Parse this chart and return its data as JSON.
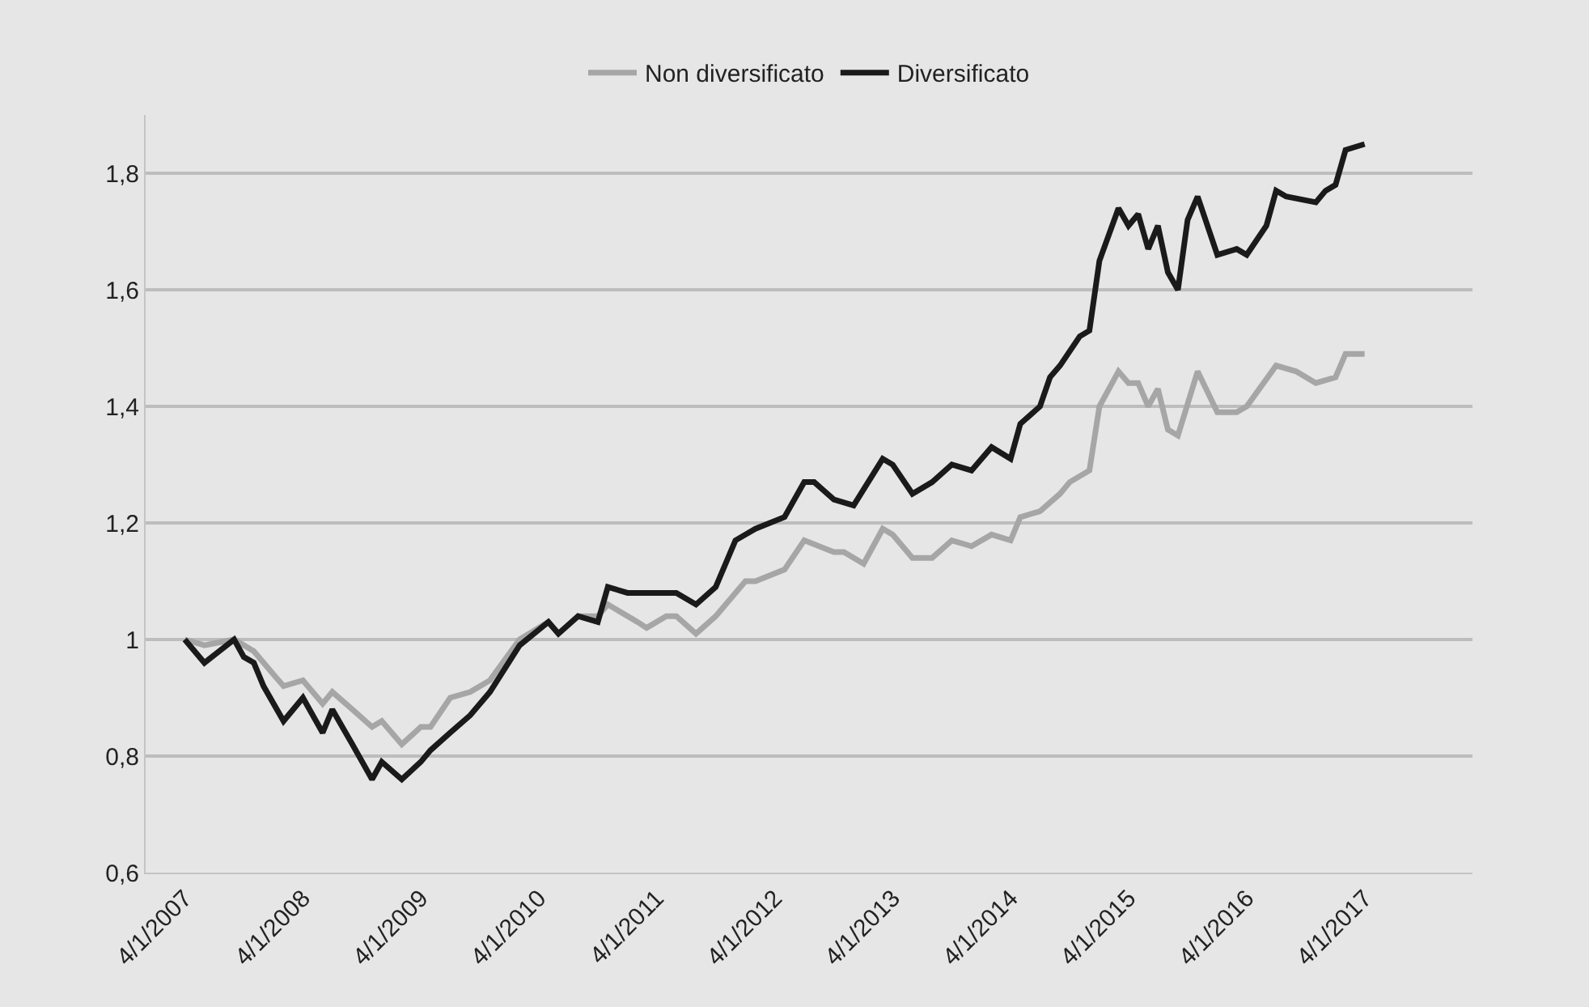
{
  "chart_data": {
    "type": "line",
    "series": [
      {
        "name": "Non diversificato",
        "color": "#a6a6a6",
        "x": [
          "2007-04",
          "2007-06",
          "2007-09",
          "2007-11",
          "2008-01",
          "2008-02",
          "2008-04",
          "2008-06",
          "2008-07",
          "2008-09",
          "2008-11",
          "2008-12",
          "2009-02",
          "2009-04",
          "2009-05",
          "2009-07",
          "2009-09",
          "2009-11",
          "2010-02",
          "2010-05",
          "2010-06",
          "2010-08",
          "2010-10",
          "2010-11",
          "2011-02",
          "2011-03",
          "2011-05",
          "2011-06",
          "2011-08",
          "2011-10",
          "2012-01",
          "2012-02",
          "2012-05",
          "2012-07",
          "2012-10",
          "2012-11",
          "2013-01",
          "2013-03",
          "2013-04",
          "2013-06",
          "2013-08",
          "2013-10",
          "2013-12",
          "2014-02",
          "2014-04",
          "2014-05",
          "2014-07",
          "2014-09",
          "2014-10",
          "2014-12",
          "2015-01",
          "2015-03",
          "2015-04",
          "2015-05",
          "2015-06",
          "2015-07",
          "2015-08",
          "2015-09",
          "2015-11",
          "2016-01",
          "2016-03",
          "2016-04",
          "2016-07",
          "2016-09",
          "2016-11",
          "2017-01",
          "2017-02",
          "2017-04"
        ],
        "values": [
          1.0,
          0.99,
          1.0,
          0.98,
          0.94,
          0.92,
          0.93,
          0.89,
          0.91,
          0.88,
          0.85,
          0.86,
          0.82,
          0.85,
          0.85,
          0.9,
          0.91,
          0.93,
          1.0,
          1.03,
          1.01,
          1.04,
          1.04,
          1.06,
          1.03,
          1.02,
          1.04,
          1.04,
          1.01,
          1.04,
          1.1,
          1.1,
          1.12,
          1.17,
          1.15,
          1.15,
          1.13,
          1.19,
          1.18,
          1.14,
          1.14,
          1.17,
          1.16,
          1.18,
          1.17,
          1.21,
          1.22,
          1.25,
          1.27,
          1.29,
          1.4,
          1.46,
          1.44,
          1.44,
          1.4,
          1.43,
          1.36,
          1.35,
          1.46,
          1.39,
          1.39,
          1.4,
          1.47,
          1.46,
          1.44,
          1.45,
          1.49,
          1.49
        ]
      },
      {
        "name": "Diversificato",
        "color": "#1a1a1a",
        "x": [
          "2007-04",
          "2007-06",
          "2007-09",
          "2007-10",
          "2007-11",
          "2007-12",
          "2008-02",
          "2008-04",
          "2008-06",
          "2008-07",
          "2008-09",
          "2008-11",
          "2008-12",
          "2009-02",
          "2009-04",
          "2009-05",
          "2009-07",
          "2009-09",
          "2009-11",
          "2010-02",
          "2010-05",
          "2010-06",
          "2010-08",
          "2010-10",
          "2010-11",
          "2011-01",
          "2011-03",
          "2011-05",
          "2011-06",
          "2011-08",
          "2011-10",
          "2011-12",
          "2012-02",
          "2012-05",
          "2012-07",
          "2012-08",
          "2012-10",
          "2012-12",
          "2013-03",
          "2013-04",
          "2013-06",
          "2013-08",
          "2013-10",
          "2013-12",
          "2014-02",
          "2014-04",
          "2014-05",
          "2014-07",
          "2014-08",
          "2014-09",
          "2014-11",
          "2014-12",
          "2015-01",
          "2015-03",
          "2015-04",
          "2015-05",
          "2015-06",
          "2015-07",
          "2015-08",
          "2015-09",
          "2015-10",
          "2015-11",
          "2016-01",
          "2016-03",
          "2016-04",
          "2016-06",
          "2016-07",
          "2016-08",
          "2016-11",
          "2016-12",
          "2017-01",
          "2017-02",
          "2017-04"
        ],
        "values": [
          1.0,
          0.96,
          1.0,
          0.97,
          0.96,
          0.92,
          0.86,
          0.9,
          0.84,
          0.88,
          0.82,
          0.76,
          0.79,
          0.76,
          0.79,
          0.81,
          0.84,
          0.87,
          0.91,
          0.99,
          1.03,
          1.01,
          1.04,
          1.03,
          1.09,
          1.08,
          1.08,
          1.08,
          1.08,
          1.06,
          1.09,
          1.17,
          1.19,
          1.21,
          1.27,
          1.27,
          1.24,
          1.23,
          1.31,
          1.3,
          1.25,
          1.27,
          1.3,
          1.29,
          1.33,
          1.31,
          1.37,
          1.4,
          1.45,
          1.47,
          1.52,
          1.53,
          1.65,
          1.74,
          1.71,
          1.73,
          1.67,
          1.71,
          1.63,
          1.6,
          1.72,
          1.76,
          1.66,
          1.67,
          1.66,
          1.71,
          1.77,
          1.76,
          1.75,
          1.77,
          1.78,
          1.84,
          1.85
        ]
      }
    ],
    "xlim": [
      "2006-12",
      "2018-03"
    ],
    "xticks": [
      {
        "value": "2007-04-01",
        "label": "4/1/2007"
      },
      {
        "value": "2008-04-01",
        "label": "4/1/2008"
      },
      {
        "value": "2009-04-01",
        "label": "4/1/2009"
      },
      {
        "value": "2010-04-01",
        "label": "4/1/2010"
      },
      {
        "value": "2011-04-01",
        "label": "4/1/2011"
      },
      {
        "value": "2012-04-01",
        "label": "4/1/2012"
      },
      {
        "value": "2013-04-01",
        "label": "4/1/2013"
      },
      {
        "value": "2014-04-01",
        "label": "4/1/2014"
      },
      {
        "value": "2015-04-01",
        "label": "4/1/2015"
      },
      {
        "value": "2016-04-01",
        "label": "4/1/2016"
      },
      {
        "value": "2017-04-01",
        "label": "4/1/2017"
      }
    ],
    "ylim": [
      0.6,
      1.9
    ],
    "yticks": [
      {
        "value": 0.6,
        "label": "0,6"
      },
      {
        "value": 0.8,
        "label": "0,8"
      },
      1,
      {
        "value": 1.2,
        "label": "1,2"
      },
      {
        "value": 1.4,
        "label": "1,4"
      },
      {
        "value": 1.6,
        "label": "1,6"
      },
      {
        "value": 1.8,
        "label": "1,8"
      }
    ],
    "grid": "y",
    "legend": "top",
    "marker": "none",
    "line_style": "solid"
  }
}
